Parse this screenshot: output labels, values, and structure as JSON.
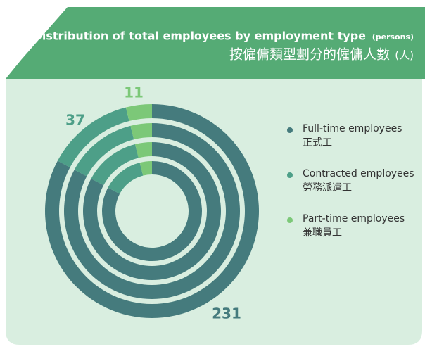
{
  "chart_data": {
    "type": "donut",
    "title": "Distribution of total employees by employment type",
    "title_unit": "(persons)",
    "subtitle": "按僱傭類型劃分的僱傭人數",
    "subtitle_unit": "(人)",
    "categories": [
      "Full-time employees",
      "Contracted employees",
      "Part-time employees"
    ],
    "categories_zh": [
      "正式工",
      "勞務派遣工",
      "兼職員工"
    ],
    "values": [
      231,
      37,
      11
    ],
    "colors": [
      "#457b7d",
      "#4d9f88",
      "#7cc878"
    ]
  }
}
